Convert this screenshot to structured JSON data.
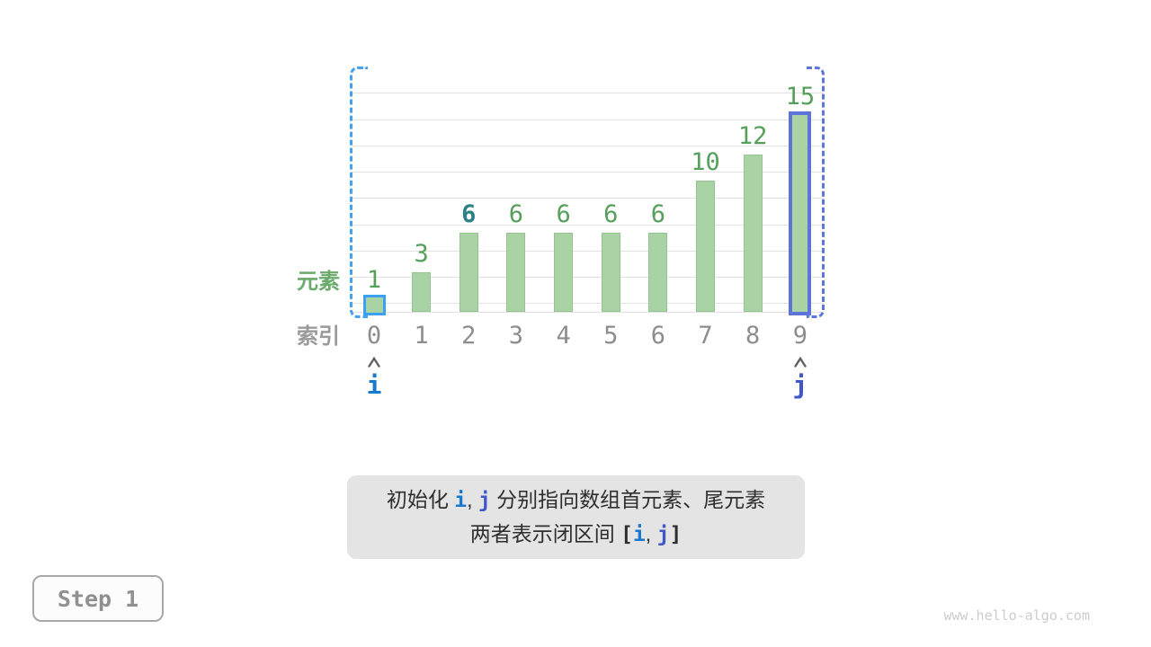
{
  "chart_data": {
    "type": "bar",
    "categories": [
      "0",
      "1",
      "2",
      "3",
      "4",
      "5",
      "6",
      "7",
      "8",
      "9"
    ],
    "values": [
      1,
      3,
      6,
      6,
      6,
      6,
      6,
      10,
      12,
      15
    ],
    "xlabel": "索引",
    "ylabel": "元素",
    "ylim": [
      0,
      16
    ],
    "grid": true,
    "legend": "none",
    "bar_color": "#a9d3a4",
    "bar_edge_color": "#93c48f",
    "value_label_color": "#55a05a",
    "emphasized_value": {
      "index": 2,
      "color": "#2a8084",
      "bold": true
    },
    "highlight_bars": [
      {
        "index": 0,
        "border_color": "#3aa1f0",
        "border_width": 3
      },
      {
        "index": 9,
        "border_color": "#5d74d8",
        "border_width": 4
      }
    ],
    "pointers": [
      {
        "label": "i",
        "index": 0,
        "color": "#1879d0"
      },
      {
        "label": "j",
        "index": 9,
        "color": "#3f57c9"
      }
    ],
    "selection_bracket": {
      "from_index": 0,
      "to_index": 9,
      "style": "dashed",
      "left_color": "#44a2ef",
      "right_color": "#5b77da"
    }
  },
  "caption": {
    "background": "#e4e4e4",
    "lines": [
      [
        {
          "text": "初始化 "
        },
        {
          "text": "i",
          "color": "#1879d0",
          "mono": true
        },
        {
          "text": ", "
        },
        {
          "text": "j",
          "color": "#3f57c9",
          "mono": true
        },
        {
          "text": " 分别指向数组首元素、尾元素"
        }
      ],
      [
        {
          "text": "两者表示闭区间 "
        },
        {
          "text": "[",
          "mono": true
        },
        {
          "text": "i",
          "color": "#1879d0",
          "mono": true
        },
        {
          "text": ", "
        },
        {
          "text": "j",
          "color": "#3f57c9",
          "mono": true
        },
        {
          "text": "]",
          "mono": true
        }
      ]
    ]
  },
  "step_badge": {
    "label": "Step 1"
  },
  "watermark": {
    "text": "www.hello-algo.com"
  }
}
